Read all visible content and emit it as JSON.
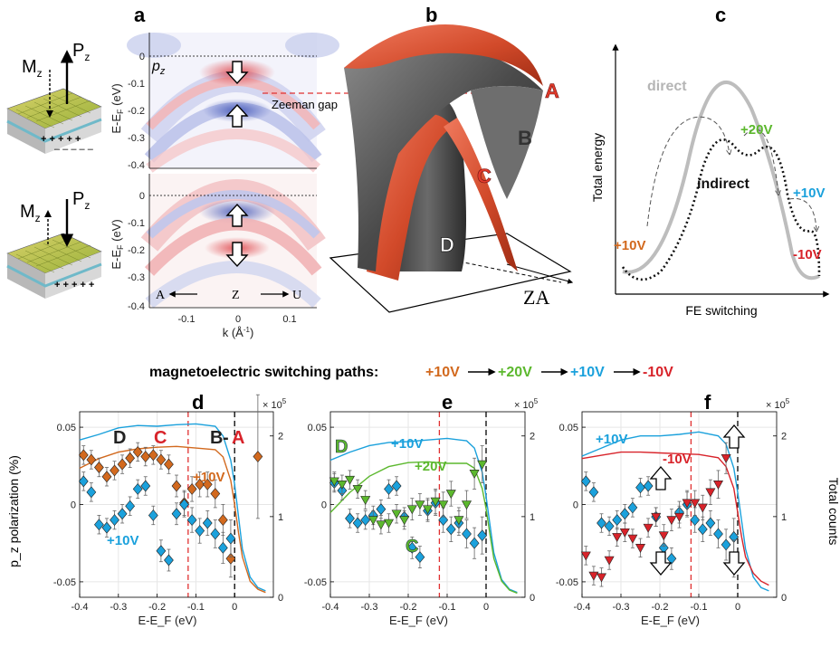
{
  "panel_letters": {
    "a": "a",
    "b": "b",
    "c": "c",
    "d": "d",
    "e": "e",
    "f": "f"
  },
  "schematic": {
    "mz": "M",
    "mz_sub": "z",
    "pz": "P",
    "pz_sub": "z",
    "plus": "+ + + + +",
    "minus": "– – – – –"
  },
  "panel_a": {
    "ylabel": "E-E",
    "ylabel_sub": "F",
    "ylabel_unit": " (eV)",
    "xlabel": "k (Å",
    "xlabel_sup": "-1",
    "xlabel_end": ")",
    "yticks": [
      "0",
      "-0.1",
      "-0.2",
      "-0.3",
      "-0.4"
    ],
    "xticks": [
      "-0.1",
      "0",
      "0.1"
    ],
    "pz_label": "p",
    "pz_sub": "z",
    "zeeman": "Zeeman gap",
    "dir_a": "A",
    "dir_z": "Z",
    "dir_u": "U"
  },
  "panel_b": {
    "A": "A",
    "B": "B",
    "C": "C",
    "D": "D",
    "axis": "ZA"
  },
  "panel_c": {
    "ylabel": "Total energy",
    "xlabel": "FE switching",
    "direct": "direct",
    "indirect": "indirect",
    "l10_left": "+10V",
    "l20": "+20V",
    "l10_right": "+10V",
    "lm10": "-10V"
  },
  "paths": {
    "title": "magnetoelectric switching paths:",
    "steps": [
      "+10V",
      "+20V",
      "+10V",
      "-10V"
    ]
  },
  "colors": {
    "orange": "#d2691e",
    "green": "#5cb82e",
    "blue": "#1ba1dc",
    "red": "#d8232a",
    "gray": "#bdbdbd"
  },
  "chart_data": [
    {
      "type": "scatter",
      "panel": "d",
      "xlabel": "E-E_F (eV)",
      "ylabel": "p_z polarization (%)",
      "ylabel2": "Total counts",
      "xlim": [
        -0.4,
        0.1
      ],
      "ylim": [
        -0.06,
        0.06
      ],
      "y2lim": [
        0,
        2.3
      ],
      "xticks": [
        -0.4,
        -0.3,
        -0.2,
        -0.1,
        0
      ],
      "yticks": [
        -0.05,
        0,
        0.05
      ],
      "y2ticks": [
        0,
        1,
        2
      ],
      "y2_multiplier": "× 10",
      "y2_multiplier_exp": "5",
      "annotations": [
        "D",
        "C",
        "B",
        "-",
        "A",
        "+10V",
        "+10V"
      ],
      "series": [
        {
          "name": "+10V",
          "marker": "diamond",
          "color": "#d2691e",
          "x": [
            -0.39,
            -0.37,
            -0.35,
            -0.33,
            -0.31,
            -0.29,
            -0.27,
            -0.25,
            -0.23,
            -0.21,
            -0.19,
            -0.17,
            -0.15,
            -0.13,
            -0.11,
            -0.09,
            -0.07,
            -0.05,
            -0.03,
            -0.01,
            0.06
          ],
          "y": [
            0.032,
            0.029,
            0.024,
            0.018,
            0.022,
            0.026,
            0.03,
            0.034,
            0.031,
            0.032,
            0.029,
            0.026,
            0.012,
            0.001,
            0.01,
            0.013,
            0.013,
            0.007,
            -0.01,
            -0.035,
            0.031
          ],
          "err": [
            0.006,
            0.006,
            0.006,
            0.006,
            0.006,
            0.006,
            0.006,
            0.006,
            0.006,
            0.006,
            0.006,
            0.006,
            0.007,
            0.008,
            0.008,
            0.008,
            0.008,
            0.009,
            0.01,
            0.012,
            0.04
          ]
        },
        {
          "name": "+10V",
          "marker": "diamond",
          "color": "#1ba1dc",
          "x": [
            -0.39,
            -0.37,
            -0.35,
            -0.33,
            -0.31,
            -0.29,
            -0.27,
            -0.25,
            -0.23,
            -0.21,
            -0.19,
            -0.17,
            -0.15,
            -0.13,
            -0.11,
            -0.09,
            -0.07,
            -0.05,
            -0.03,
            -0.01
          ],
          "y": [
            0.015,
            0.008,
            -0.013,
            -0.015,
            -0.01,
            -0.006,
            -0.001,
            0.01,
            0.012,
            -0.007,
            -0.03,
            -0.036,
            -0.006,
            0.0,
            -0.01,
            -0.017,
            -0.012,
            -0.019,
            -0.028,
            -0.022
          ],
          "err": [
            0.006,
            0.006,
            0.006,
            0.006,
            0.006,
            0.006,
            0.006,
            0.006,
            0.006,
            0.006,
            0.007,
            0.007,
            0.007,
            0.008,
            0.008,
            0.008,
            0.008,
            0.009,
            0.01,
            0.012
          ]
        }
      ],
      "curves": [
        {
          "name": "+10V counts",
          "color": "#1ba1dc",
          "x": [
            -0.4,
            -0.35,
            -0.3,
            -0.25,
            -0.2,
            -0.15,
            -0.1,
            -0.05,
            -0.03,
            -0.01,
            0.0,
            0.01,
            0.02,
            0.04,
            0.06,
            0.08
          ],
          "y": [
            1.95,
            2.02,
            2.1,
            2.13,
            2.12,
            2.14,
            2.15,
            2.12,
            2.0,
            1.7,
            1.4,
            1.0,
            0.6,
            0.25,
            0.12,
            0.08
          ]
        },
        {
          "name": "+10V counts",
          "color": "#d2691e",
          "x": [
            -0.4,
            -0.35,
            -0.3,
            -0.25,
            -0.2,
            -0.15,
            -0.1,
            -0.05,
            -0.03,
            -0.01,
            0.0,
            0.01,
            0.02,
            0.04,
            0.06,
            0.08
          ],
          "y": [
            1.6,
            1.72,
            1.8,
            1.84,
            1.86,
            1.87,
            1.85,
            1.83,
            1.74,
            1.45,
            1.15,
            0.8,
            0.5,
            0.2,
            0.1,
            0.06
          ]
        }
      ],
      "vlines": [
        {
          "x": -0.12,
          "color": "#e03030"
        },
        {
          "x": 0.0,
          "color": "#000000"
        }
      ]
    },
    {
      "type": "scatter",
      "panel": "e",
      "xlabel": "E-E_F (eV)",
      "xlim": [
        -0.4,
        0.1
      ],
      "ylim": [
        -0.06,
        0.06
      ],
      "y2lim": [
        0,
        2.3
      ],
      "xticks": [
        -0.4,
        -0.3,
        -0.2,
        -0.1,
        0
      ],
      "yticks": [
        -0.05,
        0,
        0.05
      ],
      "y2ticks": [
        0,
        1,
        2
      ],
      "y2_multiplier": "× 10",
      "y2_multiplier_exp": "5",
      "annotations": [
        "D",
        "C",
        "+10V",
        "+20V"
      ],
      "series": [
        {
          "name": "+10V",
          "marker": "diamond",
          "color": "#1ba1dc",
          "x": [
            -0.39,
            -0.37,
            -0.35,
            -0.33,
            -0.31,
            -0.29,
            -0.27,
            -0.25,
            -0.23,
            -0.21,
            -0.19,
            -0.17,
            -0.15,
            -0.13,
            -0.11,
            -0.09,
            -0.07,
            -0.05,
            -0.03,
            -0.01
          ],
          "y": [
            0.014,
            0.009,
            -0.009,
            -0.012,
            -0.01,
            -0.007,
            -0.003,
            0.01,
            0.012,
            -0.008,
            -0.028,
            -0.034,
            -0.004,
            0.001,
            -0.01,
            -0.016,
            -0.012,
            -0.019,
            -0.025,
            -0.02
          ],
          "err": [
            0.006,
            0.006,
            0.006,
            0.006,
            0.006,
            0.006,
            0.006,
            0.006,
            0.006,
            0.006,
            0.007,
            0.007,
            0.007,
            0.008,
            0.008,
            0.008,
            0.008,
            0.009,
            0.01,
            0.012
          ]
        },
        {
          "name": "+20V",
          "marker": "triangle-down",
          "color": "#5cb82e",
          "x": [
            -0.39,
            -0.37,
            -0.35,
            -0.33,
            -0.31,
            -0.29,
            -0.27,
            -0.25,
            -0.23,
            -0.21,
            -0.19,
            -0.17,
            -0.15,
            -0.13,
            -0.11,
            -0.09,
            -0.07,
            -0.05,
            -0.03,
            -0.01
          ],
          "y": [
            0.015,
            0.013,
            0.016,
            0.01,
            0.003,
            -0.01,
            -0.013,
            -0.012,
            -0.006,
            -0.01,
            -0.003,
            0.0,
            -0.003,
            0.002,
            0.0,
            0.007,
            -0.01,
            0.0,
            0.02,
            0.026
          ],
          "err": [
            0.006,
            0.006,
            0.006,
            0.006,
            0.006,
            0.006,
            0.006,
            0.006,
            0.006,
            0.006,
            0.007,
            0.007,
            0.007,
            0.008,
            0.008,
            0.008,
            0.008,
            0.009,
            0.01,
            0.012
          ]
        }
      ],
      "curves": [
        {
          "name": "+10V counts",
          "color": "#1ba1dc",
          "x": [
            -0.4,
            -0.35,
            -0.3,
            -0.25,
            -0.2,
            -0.15,
            -0.1,
            -0.05,
            -0.03,
            -0.01,
            0.0,
            0.01,
            0.02,
            0.04,
            0.06,
            0.08
          ],
          "y": [
            1.7,
            1.8,
            1.88,
            1.92,
            1.93,
            1.95,
            1.97,
            1.94,
            1.85,
            1.55,
            1.25,
            0.9,
            0.55,
            0.22,
            0.1,
            0.06
          ]
        },
        {
          "name": "+20V counts",
          "color": "#5cb82e",
          "x": [
            -0.4,
            -0.35,
            -0.3,
            -0.25,
            -0.2,
            -0.15,
            -0.1,
            -0.05,
            -0.03,
            -0.01,
            0.0,
            0.01,
            0.02,
            0.04,
            0.06,
            0.08
          ],
          "y": [
            1.05,
            1.3,
            1.5,
            1.62,
            1.67,
            1.68,
            1.66,
            1.66,
            1.6,
            1.35,
            1.1,
            0.78,
            0.48,
            0.2,
            0.09,
            0.05
          ]
        }
      ],
      "vlines": [
        {
          "x": -0.12,
          "color": "#e03030"
        },
        {
          "x": 0.0,
          "color": "#000000"
        }
      ]
    },
    {
      "type": "scatter",
      "panel": "f",
      "xlabel": "E-E_F (eV)",
      "ylabel2": "Total counts",
      "xlim": [
        -0.4,
        0.1
      ],
      "ylim": [
        -0.06,
        0.06
      ],
      "y2lim": [
        0,
        2.3
      ],
      "xticks": [
        -0.4,
        -0.3,
        -0.2,
        -0.1,
        0
      ],
      "yticks": [
        -0.05,
        0,
        0.05
      ],
      "y2ticks": [
        0,
        1,
        2
      ],
      "y2_multiplier": "× 10",
      "y2_multiplier_exp": "5",
      "annotations": [
        "+10V",
        "-10V"
      ],
      "series": [
        {
          "name": "+10V",
          "marker": "diamond",
          "color": "#1ba1dc",
          "x": [
            -0.39,
            -0.37,
            -0.35,
            -0.33,
            -0.31,
            -0.29,
            -0.27,
            -0.25,
            -0.23,
            -0.21,
            -0.19,
            -0.17,
            -0.15,
            -0.13,
            -0.11,
            -0.09,
            -0.07,
            -0.05,
            -0.03,
            -0.01
          ],
          "y": [
            0.015,
            0.008,
            -0.012,
            -0.014,
            -0.01,
            -0.006,
            -0.002,
            0.011,
            0.012,
            -0.008,
            -0.028,
            -0.035,
            -0.005,
            0.0,
            -0.01,
            -0.016,
            -0.012,
            -0.019,
            -0.026,
            -0.021
          ],
          "err": [
            0.006,
            0.006,
            0.006,
            0.006,
            0.006,
            0.006,
            0.006,
            0.006,
            0.006,
            0.006,
            0.007,
            0.007,
            0.007,
            0.008,
            0.008,
            0.008,
            0.008,
            0.009,
            0.01,
            0.012
          ]
        },
        {
          "name": "-10V",
          "marker": "triangle-down",
          "color": "#d8232a",
          "x": [
            -0.39,
            -0.37,
            -0.35,
            -0.33,
            -0.31,
            -0.29,
            -0.27,
            -0.25,
            -0.23,
            -0.21,
            -0.19,
            -0.17,
            -0.15,
            -0.13,
            -0.11,
            -0.09,
            -0.07,
            -0.05,
            -0.03,
            -0.01
          ],
          "y": [
            -0.033,
            -0.046,
            -0.047,
            -0.036,
            -0.021,
            -0.018,
            -0.022,
            -0.028,
            -0.015,
            -0.008,
            -0.02,
            -0.01,
            -0.008,
            0.001,
            0.001,
            -0.002,
            0.008,
            0.013,
            0.03,
            -0.035
          ],
          "err": [
            0.006,
            0.006,
            0.006,
            0.006,
            0.006,
            0.006,
            0.006,
            0.006,
            0.006,
            0.006,
            0.007,
            0.007,
            0.007,
            0.008,
            0.008,
            0.008,
            0.008,
            0.009,
            0.01,
            0.012
          ]
        }
      ],
      "curves": [
        {
          "name": "+10V counts",
          "color": "#1ba1dc",
          "x": [
            -0.4,
            -0.35,
            -0.3,
            -0.25,
            -0.2,
            -0.15,
            -0.1,
            -0.05,
            -0.03,
            -0.01,
            0.0,
            0.01,
            0.02,
            0.04,
            0.06,
            0.08
          ],
          "y": [
            1.75,
            1.85,
            1.95,
            2.0,
            2.0,
            2.02,
            2.05,
            2.0,
            1.9,
            1.6,
            1.3,
            0.95,
            0.6,
            0.25,
            0.12,
            0.08
          ]
        },
        {
          "name": "-10V counts",
          "color": "#d8232a",
          "x": [
            -0.4,
            -0.35,
            -0.3,
            -0.25,
            -0.2,
            -0.15,
            -0.1,
            -0.05,
            -0.03,
            -0.01,
            0.0,
            0.01,
            0.02,
            0.04,
            0.06,
            0.08
          ],
          "y": [
            1.72,
            1.76,
            1.8,
            1.8,
            1.79,
            1.78,
            1.77,
            1.73,
            1.62,
            1.35,
            1.05,
            0.75,
            0.5,
            0.3,
            0.2,
            0.15
          ]
        }
      ],
      "vlines": [
        {
          "x": -0.12,
          "color": "#e03030"
        },
        {
          "x": 0.0,
          "color": "#000000"
        }
      ]
    }
  ]
}
